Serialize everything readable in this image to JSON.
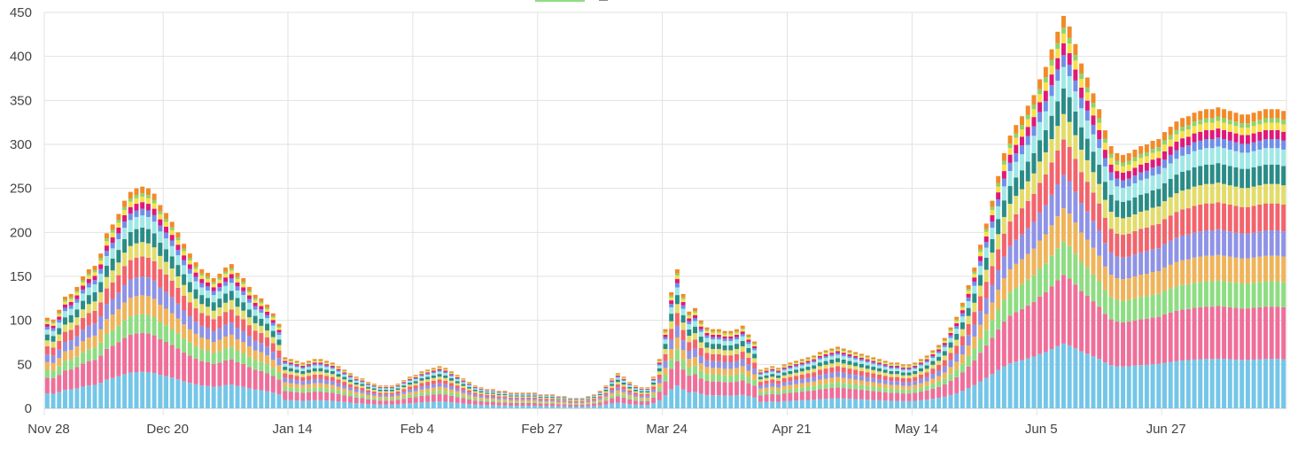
{
  "chart_data": {
    "type": "bar",
    "stacked": true,
    "title": "",
    "xlabel": "",
    "ylabel": "",
    "ylim": [
      0,
      450
    ],
    "grid": true,
    "legend_placement": "top-center (cut off)",
    "ytick_labels": [
      "0",
      "50",
      "100",
      "150",
      "200",
      "250",
      "300",
      "350",
      "400",
      "450"
    ],
    "xtick_labels": [
      "Nov 28",
      "Dec 20",
      "Jan 14",
      "Feb 4",
      "Feb 27",
      "Mar 24",
      "Apr 21",
      "May 14",
      "Jun 5",
      "Jun 27"
    ],
    "xtick_bar_index": [
      0,
      20,
      41,
      62,
      83,
      104,
      125,
      146,
      167,
      188
    ],
    "bar_count": 209,
    "totals": [
      103,
      101,
      112,
      127,
      130,
      138,
      150,
      158,
      162,
      176,
      199,
      209,
      221,
      236,
      246,
      250,
      252,
      250,
      244,
      231,
      222,
      212,
      200,
      187,
      176,
      166,
      158,
      154,
      148,
      153,
      160,
      164,
      154,
      148,
      138,
      129,
      125,
      118,
      108,
      96,
      58,
      56,
      54,
      52,
      54,
      56,
      56,
      54,
      52,
      48,
      44,
      40,
      36,
      34,
      30,
      28,
      26,
      26,
      26,
      28,
      32,
      36,
      38,
      42,
      44,
      46,
      48,
      46,
      42,
      38,
      34,
      30,
      26,
      24,
      22,
      22,
      20,
      20,
      18,
      18,
      18,
      18,
      18,
      16,
      16,
      16,
      14,
      14,
      12,
      12,
      12,
      14,
      16,
      20,
      26,
      34,
      40,
      36,
      30,
      26,
      24,
      24,
      36,
      56,
      90,
      132,
      158,
      130,
      110,
      114,
      100,
      92,
      90,
      90,
      88,
      88,
      90,
      94,
      84,
      76,
      44,
      46,
      48,
      46,
      50,
      52,
      54,
      56,
      58,
      60,
      64,
      66,
      68,
      70,
      68,
      66,
      64,
      62,
      60,
      58,
      56,
      54,
      52,
      52,
      50,
      50,
      52,
      56,
      60,
      66,
      72,
      80,
      92,
      104,
      120,
      140,
      160,
      186,
      210,
      236,
      264,
      290,
      310,
      322,
      332,
      344,
      356,
      374,
      388,
      408,
      428,
      446,
      434,
      414,
      392,
      376,
      358,
      340,
      316,
      298,
      290,
      288,
      290,
      294,
      298,
      300,
      304,
      306,
      314,
      320,
      326,
      330,
      332,
      336,
      338,
      340,
      340,
      342,
      340,
      338,
      336,
      334,
      334,
      336,
      338,
      340,
      340,
      340,
      338
    ],
    "shares": [
      0.165,
      0.175,
      0.085,
      0.085,
      0.085,
      0.09,
      0.065,
      0.065,
      0.055,
      0.03,
      0.03,
      0.025,
      0.015,
      0.03
    ],
    "series_colors": [
      "#74c6e8",
      "#ef6f9a",
      "#8ddd82",
      "#efb45a",
      "#8e93e6",
      "#f2646d",
      "#e3dc6a",
      "#2a8c86",
      "#9fe8e6",
      "#6f8fe8",
      "#e0187b",
      "#f8e04a",
      "#8fd36b",
      "#f28a28"
    ]
  }
}
